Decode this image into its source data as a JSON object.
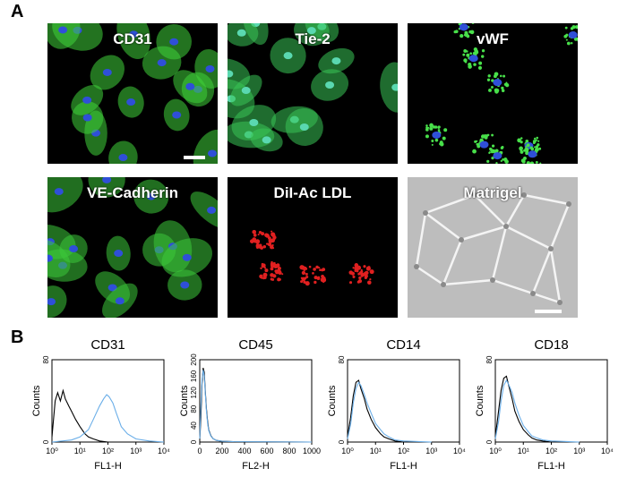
{
  "figure": {
    "panel_a_letter": "A",
    "panel_b_letter": "B",
    "micrographs": [
      {
        "label": "CD31",
        "stain": "green membrane with blue nuclei",
        "color": "#3fd23a"
      },
      {
        "label": "Tie-2",
        "stain": "green with cyan nuclei",
        "color": "#38c455"
      },
      {
        "label": "vWF",
        "stain": "punctate green granules",
        "color": "#48e04a"
      },
      {
        "label": "VE-Cadherin",
        "stain": "green junctions with blue nuclei",
        "color": "#3cc83a"
      },
      {
        "label": "DiI-Ac LDL",
        "stain": "red uptake clusters",
        "color": "#e02020"
      },
      {
        "label": "Matrigel",
        "stain": "phase contrast tube network",
        "color": "#c8c8c8"
      }
    ]
  },
  "chart_data": [
    {
      "type": "line",
      "title": "CD31",
      "xlabel": "FL1-H",
      "ylabel": "Counts",
      "xscale": "log",
      "xlim": [
        1,
        10000
      ],
      "ylim": [
        0,
        80
      ],
      "xticks": [
        "10⁰",
        "10¹",
        "10²",
        "10³",
        "10⁴"
      ],
      "yticks": [
        "0",
        "80"
      ],
      "series": [
        {
          "color": "#000000",
          "x": [
            1,
            1.3,
            1.6,
            2,
            2.5,
            3,
            4,
            5,
            7,
            10,
            15,
            20,
            30,
            50,
            100
          ],
          "y": [
            5,
            40,
            48,
            40,
            50,
            42,
            35,
            30,
            22,
            15,
            8,
            5,
            3,
            1,
            0
          ]
        },
        {
          "color": "#6aaee8",
          "x": [
            1,
            5,
            10,
            20,
            30,
            50,
            70,
            90,
            110,
            150,
            200,
            300,
            500,
            1000,
            3000,
            10000
          ],
          "y": [
            0,
            2,
            5,
            12,
            22,
            35,
            42,
            46,
            44,
            38,
            28,
            15,
            8,
            3,
            1,
            0
          ]
        }
      ]
    },
    {
      "type": "line",
      "title": "CD45",
      "xlabel": "FL2-H",
      "ylabel": "Counts",
      "xscale": "linear",
      "xlim": [
        0,
        1000
      ],
      "ylim": [
        0,
        200
      ],
      "xticks": [
        "0",
        "200",
        "400",
        "600",
        "800",
        "1000"
      ],
      "yticks": [
        "0",
        "40",
        "80",
        "120",
        "160",
        "200"
      ],
      "series": [
        {
          "color": "#000000",
          "x": [
            0,
            10,
            20,
            30,
            40,
            50,
            60,
            70,
            80,
            100,
            120,
            150,
            200,
            300,
            1000
          ],
          "y": [
            5,
            60,
            140,
            180,
            170,
            120,
            80,
            50,
            30,
            15,
            8,
            4,
            2,
            1,
            0
          ]
        },
        {
          "color": "#6aaee8",
          "x": [
            0,
            10,
            20,
            30,
            40,
            50,
            60,
            70,
            80,
            100,
            120,
            150,
            200,
            300,
            1000
          ],
          "y": [
            8,
            90,
            150,
            175,
            160,
            115,
            75,
            45,
            28,
            14,
            8,
            4,
            2,
            1,
            0
          ]
        }
      ]
    },
    {
      "type": "line",
      "title": "CD14",
      "xlabel": "FL1-H",
      "ylabel": "Counts",
      "xscale": "log",
      "xlim": [
        1,
        10000
      ],
      "ylim": [
        0,
        80
      ],
      "xticks": [
        "10⁰",
        "10¹",
        "10²",
        "10³",
        "10⁴"
      ],
      "yticks": [
        "0",
        "80"
      ],
      "series": [
        {
          "color": "#000000",
          "x": [
            1,
            1.3,
            1.6,
            2,
            2.5,
            3,
            4,
            5,
            7,
            10,
            15,
            20,
            30,
            50,
            100,
            1000
          ],
          "y": [
            5,
            25,
            45,
            58,
            60,
            52,
            42,
            32,
            22,
            14,
            8,
            5,
            3,
            1,
            0,
            0
          ]
        },
        {
          "color": "#6aaee8",
          "x": [
            1,
            1.3,
            1.6,
            2,
            2.5,
            3,
            4,
            5,
            7,
            10,
            15,
            20,
            30,
            50,
            100,
            1000
          ],
          "y": [
            3,
            18,
            38,
            52,
            58,
            55,
            46,
            38,
            28,
            18,
            12,
            8,
            5,
            2,
            1,
            0
          ]
        }
      ]
    },
    {
      "type": "line",
      "title": "CD18",
      "xlabel": "FL1-H",
      "ylabel": "Counts",
      "xscale": "log",
      "xlim": [
        1,
        10000
      ],
      "ylim": [
        0,
        80
      ],
      "xticks": [
        "10⁰",
        "10¹",
        "10²",
        "10³",
        "10⁴"
      ],
      "yticks": [
        "0",
        "80"
      ],
      "series": [
        {
          "color": "#000000",
          "x": [
            1,
            1.3,
            1.6,
            2,
            2.5,
            3,
            4,
            5,
            7,
            10,
            15,
            20,
            30,
            50,
            100,
            1000
          ],
          "y": [
            5,
            30,
            50,
            62,
            64,
            55,
            42,
            30,
            20,
            12,
            7,
            4,
            2,
            1,
            0,
            0
          ]
        },
        {
          "color": "#6aaee8",
          "x": [
            1,
            1.3,
            1.6,
            2,
            2.5,
            3,
            4,
            5,
            7,
            10,
            15,
            20,
            30,
            50,
            100,
            1000
          ],
          "y": [
            3,
            20,
            40,
            55,
            60,
            56,
            48,
            38,
            26,
            16,
            10,
            6,
            4,
            2,
            1,
            0
          ]
        }
      ]
    }
  ]
}
